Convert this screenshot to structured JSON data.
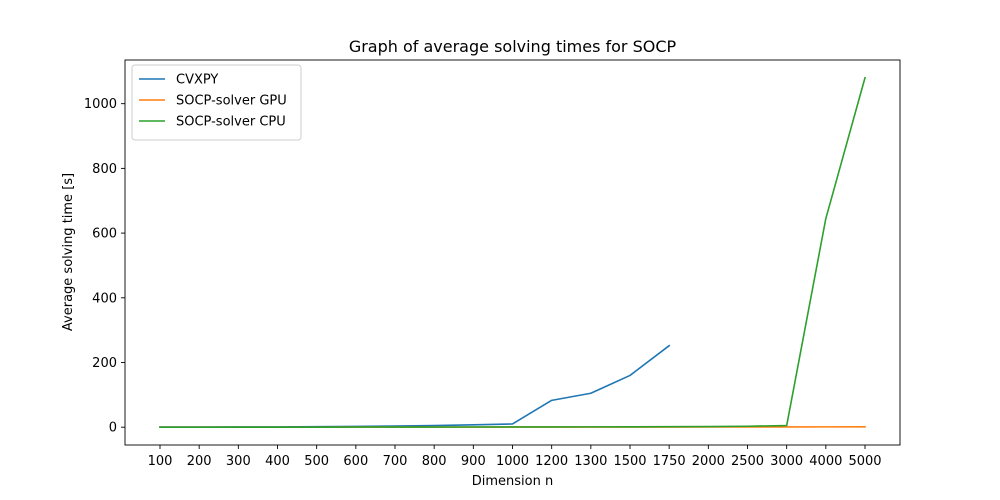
{
  "chart_data": {
    "type": "line",
    "title": "Graph of average solving times for SOCP",
    "xlabel": "Dimension n",
    "ylabel": "Average solving time [s]",
    "categories": [
      "100",
      "200",
      "300",
      "400",
      "500",
      "600",
      "700",
      "800",
      "900",
      "1000",
      "1200",
      "1300",
      "1500",
      "1750",
      "2000",
      "2500",
      "3000",
      "4000",
      "5000"
    ],
    "x_scale": "categorical",
    "ylim": [
      -55,
      1135
    ],
    "yticks": [
      0,
      200,
      400,
      600,
      800,
      1000
    ],
    "grid": false,
    "legend_position": "upper-left",
    "series": [
      {
        "name": "CVXPY",
        "color": "#1f77b4",
        "values": [
          0.5,
          0.5,
          0.7,
          1.0,
          1.5,
          2.5,
          3.5,
          5.0,
          7.5,
          10,
          83,
          105,
          160,
          252,
          null,
          null,
          null,
          null,
          null
        ]
      },
      {
        "name": "SOCP-solver GPU",
        "color": "#ff7f0e",
        "values": [
          0.2,
          0.2,
          0.2,
          0.2,
          0.2,
          0.3,
          0.3,
          0.3,
          0.3,
          0.3,
          0.3,
          0.4,
          0.4,
          0.5,
          0.6,
          0.7,
          0.8,
          1.0,
          1.2
        ]
      },
      {
        "name": "SOCP-solver CPU",
        "color": "#2ca02c",
        "values": [
          0.1,
          0.1,
          0.1,
          0.2,
          0.2,
          0.3,
          0.4,
          0.5,
          0.6,
          0.7,
          0.8,
          1.0,
          1.2,
          1.6,
          2.0,
          3.0,
          5.0,
          645,
          1080
        ]
      }
    ]
  }
}
